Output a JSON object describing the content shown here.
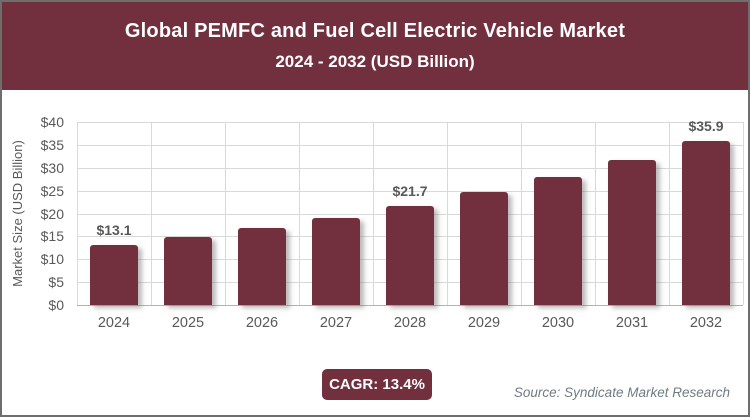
{
  "colors": {
    "maroon": "#72303F",
    "grid": "#d9d9d9",
    "axis_line": "#b3b3b3",
    "tick_text": "#595959",
    "source_text": "#6e7b82",
    "border": "#6e6e6e"
  },
  "header": {
    "title_line1": "Global PEMFC and Fuel Cell Electric Vehicle Market",
    "title_line2": "2024 - 2032 (USD Billion)"
  },
  "chart_data": {
    "type": "bar",
    "title": "Global PEMFC and Fuel Cell Electric Vehicle Market 2024 - 2032 (USD Billion)",
    "categories": [
      "2024",
      "2025",
      "2026",
      "2027",
      "2028",
      "2029",
      "2030",
      "2031",
      "2032"
    ],
    "values": [
      13.1,
      14.9,
      16.8,
      19.1,
      21.7,
      24.6,
      27.9,
      31.6,
      35.9
    ],
    "bar_labels": [
      "$13.1",
      null,
      null,
      null,
      "$21.7",
      null,
      null,
      null,
      "$35.9"
    ],
    "xlabel": "",
    "ylabel": "Market Size (USD Billion)",
    "ylim": [
      0,
      40
    ],
    "ytick_step": 5,
    "ytick_labels": [
      "$40",
      "$35",
      "$30",
      "$25",
      "$20",
      "$15",
      "$10",
      "$5",
      "$0"
    ],
    "grid": true,
    "legend": false,
    "bar_color": "#72303F"
  },
  "footer": {
    "cagr_label": "CAGR: 13.4%",
    "source": "Source: Syndicate Market Research"
  }
}
